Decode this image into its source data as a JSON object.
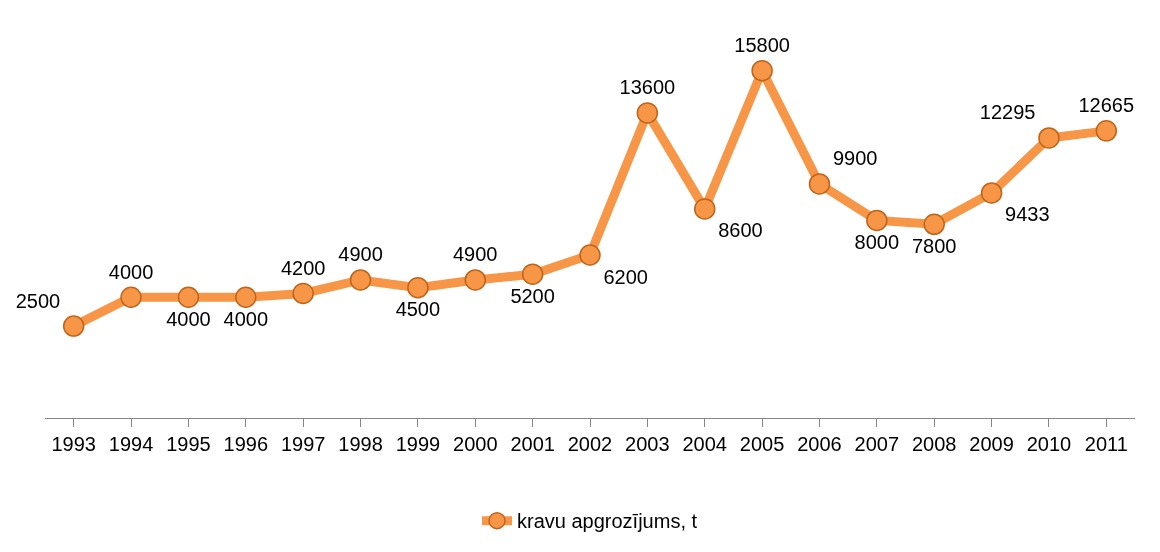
{
  "chart_data": {
    "type": "line",
    "categories": [
      "1993",
      "1994",
      "1995",
      "1996",
      "1997",
      "1998",
      "1999",
      "2000",
      "2001",
      "2002",
      "2003",
      "2004",
      "2005",
      "2006",
      "2007",
      "2008",
      "2009",
      "2010",
      "2011"
    ],
    "series": [
      {
        "name": "kravu apgrozījums, t",
        "color": "#f79646",
        "values": [
          2500,
          4000,
          4000,
          4000,
          4200,
          4900,
          4500,
          4900,
          5200,
          6200,
          13600,
          8600,
          15800,
          9900,
          8000,
          7800,
          9433,
          12295,
          12665
        ]
      }
    ],
    "data_labels": true,
    "marker": "circle",
    "line_style": "solid",
    "legend": "bottom",
    "tick_labels": "x"
  }
}
